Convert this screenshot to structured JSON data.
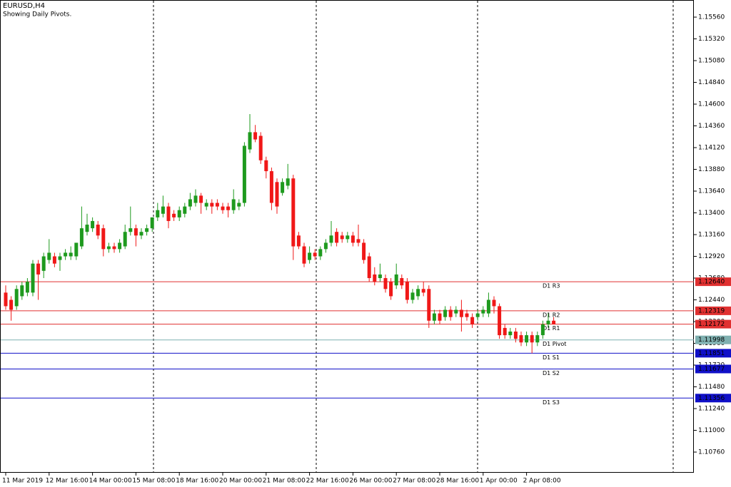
{
  "chart_data": {
    "type": "candlestick",
    "title": "EURUSD,H4",
    "subtitle": "Showing Daily Pivots.",
    "up_color": "#1e9a1e",
    "down_color": "#f01818",
    "categories": [
      "11 Mar 2019",
      null,
      null,
      null,
      null,
      null,
      null,
      null,
      "12 Mar 16:00",
      null,
      null,
      null,
      null,
      null,
      null,
      null,
      "14 Mar 00:00",
      null,
      null,
      null,
      null,
      null,
      null,
      null,
      "15 Mar 08:00",
      null,
      null,
      null,
      null,
      null,
      null,
      null,
      "18 Mar 16:00",
      null,
      null,
      null,
      null,
      null,
      null,
      null,
      "20 Mar 00:00",
      null,
      null,
      null,
      null,
      null,
      null,
      null,
      "21 Mar 08:00",
      null,
      null,
      null,
      null,
      null,
      null,
      null,
      "22 Mar 16:00",
      null,
      null,
      null,
      null,
      null,
      null,
      null,
      "26 Mar 00:00",
      null,
      null,
      null,
      null,
      null,
      null,
      null,
      "27 Mar 08:00",
      null,
      null,
      null,
      null,
      null,
      null,
      null,
      "28 Mar 16:00",
      null,
      null,
      null,
      null,
      null,
      null,
      null,
      "1 Apr 00:00",
      null,
      null,
      null,
      null,
      null,
      null,
      null,
      "2 Apr 08:00",
      null,
      null,
      null,
      null,
      null
    ],
    "open": [
      1.1252,
      1.1244,
      1.1237,
      1.1248,
      1.1252,
      1.1252,
      1.1284,
      1.1276,
      1.1288,
      1.1292,
      1.1288,
      1.1292,
      1.1292,
      1.1292,
      1.1303,
      1.1319,
      1.1323,
      1.1327,
      1.1323,
      1.13,
      1.1303,
      1.13,
      1.1303,
      1.1319,
      1.1323,
      1.1315,
      1.1319,
      1.1323,
      1.1335,
      1.1339,
      1.1347,
      1.1339,
      1.1335,
      1.1339,
      1.1347,
      1.1351,
      1.1359,
      1.1347,
      1.1351,
      1.1351,
      1.1347,
      1.1347,
      1.1343,
      1.1347,
      1.1351,
      1.141,
      1.1429,
      1.1425,
      1.1398,
      1.1386,
      1.1374,
      1.1362,
      1.137,
      1.1378,
      1.1315,
      1.1303,
      1.1288,
      1.1296,
      1.1292,
      1.13,
      1.1307,
      1.1319,
      1.1315,
      1.1311,
      1.1315,
      1.1311,
      1.1307,
      1.1292,
      1.1272,
      1.1268,
      1.1268,
      1.1264,
      1.126,
      1.1268,
      1.1264,
      1.1244,
      1.1248,
      1.1256,
      1.1256,
      1.1221,
      1.1229,
      1.1225,
      1.1233,
      1.1229,
      1.1233,
      1.1229,
      1.1225,
      1.1225,
      1.1229,
      1.1229,
      1.1244,
      1.1237,
      1.1213,
      1.1205,
      1.1209,
      1.1205,
      1.1197,
      1.1205,
      1.1197,
      1.1205,
      1.1217,
      1.1221
    ],
    "high": [
      1.126,
      1.1248,
      1.126,
      1.1264,
      1.1268,
      1.1288,
      1.1288,
      1.1296,
      1.1311,
      1.1296,
      1.1296,
      1.13,
      1.1303,
      1.1307,
      1.1347,
      1.1339,
      1.1335,
      1.1331,
      1.1327,
      1.1307,
      1.1307,
      1.1311,
      1.1327,
      1.1347,
      1.1327,
      1.1323,
      1.1327,
      1.1335,
      1.1351,
      1.1359,
      1.1351,
      1.1343,
      1.1347,
      1.1351,
      1.1362,
      1.1366,
      1.1362,
      1.1355,
      1.1355,
      1.1355,
      1.1351,
      1.1351,
      1.1366,
      1.1355,
      1.1418,
      1.1449,
      1.1437,
      1.1429,
      1.1402,
      1.139,
      1.1378,
      1.1378,
      1.1394,
      1.1382,
      1.1319,
      1.1307,
      1.1303,
      1.13,
      1.1303,
      1.1311,
      1.1331,
      1.1323,
      1.1319,
      1.1319,
      1.1319,
      1.1327,
      1.1311,
      1.1296,
      1.128,
      1.1284,
      1.1272,
      1.1268,
      1.1284,
      1.1272,
      1.1268,
      1.1256,
      1.126,
      1.1264,
      1.126,
      1.1233,
      1.1233,
      1.1237,
      1.1237,
      1.1237,
      1.1244,
      1.1233,
      1.1229,
      1.1233,
      1.1237,
      1.1252,
      1.1248,
      1.124,
      1.1217,
      1.1213,
      1.1213,
      1.1209,
      1.1209,
      1.1209,
      1.1209,
      1.1221,
      1.1229,
      1.1225
    ],
    "low": [
      1.1233,
      1.1221,
      1.1233,
      1.1244,
      1.1248,
      1.1248,
      1.1244,
      1.1268,
      1.1284,
      1.128,
      1.1276,
      1.1288,
      1.1288,
      1.1288,
      1.13,
      1.1315,
      1.1319,
      1.1311,
      1.1292,
      1.1296,
      1.1296,
      1.1296,
      1.13,
      1.1315,
      1.1303,
      1.1311,
      1.1315,
      1.1319,
      1.1331,
      1.1335,
      1.1323,
      1.1331,
      1.1331,
      1.1335,
      1.1343,
      1.1347,
      1.1339,
      1.1343,
      1.1339,
      1.1343,
      1.1339,
      1.1335,
      1.1339,
      1.1343,
      1.1347,
      1.1406,
      1.1418,
      1.1394,
      1.1378,
      1.1343,
      1.1339,
      1.1359,
      1.1366,
      1.1288,
      1.13,
      1.128,
      1.1284,
      1.1288,
      1.1288,
      1.1296,
      1.1303,
      1.1303,
      1.1307,
      1.1307,
      1.1303,
      1.1303,
      1.1284,
      1.1264,
      1.126,
      1.1264,
      1.1252,
      1.1244,
      1.1256,
      1.1256,
      1.124,
      1.124,
      1.1244,
      1.1248,
      1.1213,
      1.1217,
      1.1217,
      1.1221,
      1.1221,
      1.1225,
      1.1209,
      1.1221,
      1.1213,
      1.1221,
      1.1225,
      1.1225,
      1.1229,
      1.1201,
      1.1201,
      1.1201,
      1.1197,
      1.1193,
      1.1193,
      1.1185,
      1.1193,
      1.1201,
      1.1213,
      1.1217
    ],
    "close": [
      1.1237,
      1.1233,
      1.1256,
      1.126,
      1.1264,
      1.1284,
      1.1272,
      1.1292,
      1.1296,
      1.1284,
      1.1292,
      1.1296,
      1.1296,
      1.1307,
      1.1323,
      1.1327,
      1.1331,
      1.1315,
      1.13,
      1.1303,
      1.13,
      1.1307,
      1.1319,
      1.1323,
      1.1315,
      1.1319,
      1.1323,
      1.1335,
      1.1343,
      1.1347,
      1.1331,
      1.1335,
      1.1343,
      1.1347,
      1.1355,
      1.1359,
      1.1351,
      1.1351,
      1.1347,
      1.1347,
      1.1343,
      1.1343,
      1.1355,
      1.1351,
      1.1414,
      1.1429,
      1.1421,
      1.1398,
      1.1386,
      1.1351,
      1.1347,
      1.1374,
      1.1378,
      1.1303,
      1.1303,
      1.1284,
      1.1296,
      1.1292,
      1.13,
      1.1307,
      1.1315,
      1.1307,
      1.1311,
      1.1315,
      1.1307,
      1.1307,
      1.1288,
      1.1268,
      1.1264,
      1.1272,
      1.1256,
      1.1248,
      1.1272,
      1.126,
      1.1244,
      1.1252,
      1.1256,
      1.1252,
      1.1221,
      1.1229,
      1.1221,
      1.1233,
      1.1225,
      1.1233,
      1.1225,
      1.1225,
      1.1217,
      1.1229,
      1.1233,
      1.1244,
      1.1237,
      1.1205,
      1.1205,
      1.1209,
      1.1201,
      1.1197,
      1.1205,
      1.1197,
      1.1205,
      1.1217,
      1.1221,
      1.1217
    ],
    "ylim": [
      1.10532,
      1.15749
    ],
    "yticks": [
      {
        "value": 1.1556,
        "label": "1.15560"
      },
      {
        "value": 1.1532,
        "label": "1.15320"
      },
      {
        "value": 1.1508,
        "label": "1.15080"
      },
      {
        "value": 1.1484,
        "label": "1.14840"
      },
      {
        "value": 1.146,
        "label": "1.14600"
      },
      {
        "value": 1.1436,
        "label": "1.14360"
      },
      {
        "value": 1.1412,
        "label": "1.14120"
      },
      {
        "value": 1.1388,
        "label": "1.13880"
      },
      {
        "value": 1.1364,
        "label": "1.13640"
      },
      {
        "value": 1.134,
        "label": "1.13400"
      },
      {
        "value": 1.1316,
        "label": "1.13160"
      },
      {
        "value": 1.1292,
        "label": "1.12920"
      },
      {
        "value": 1.1268,
        "label": "1.12680"
      },
      {
        "value": 1.1244,
        "label": "1.12440"
      },
      {
        "value": 1.122,
        "label": "1.12200"
      },
      {
        "value": 1.1196,
        "label": "1.11960"
      },
      {
        "value": 1.1172,
        "label": "1.11720"
      },
      {
        "value": 1.1148,
        "label": "1.11480"
      },
      {
        "value": 1.1124,
        "label": "1.11240"
      },
      {
        "value": 1.11,
        "label": "1.11000"
      },
      {
        "value": 1.1076,
        "label": "1.10760"
      }
    ],
    "levels": {
      "names": [
        "D1 R3",
        "D1 R2",
        "D1 R1",
        "D1 Pivot",
        "D1 S1",
        "D1 S2",
        "D1 S3"
      ],
      "values": [
        1.1264,
        1.12319,
        1.12172,
        1.11998,
        1.11851,
        1.11677,
        1.11356
      ],
      "value_labels": [
        "1.12640",
        "1.12319",
        "1.12172",
        "1.11998",
        "1.11851",
        "1.11677",
        "1.11356"
      ],
      "colors": [
        "#e03030",
        "#e03030",
        "#e03030",
        "#7fb0b0",
        "#1010c8",
        "#1010c8",
        "#1010c8"
      ]
    }
  }
}
